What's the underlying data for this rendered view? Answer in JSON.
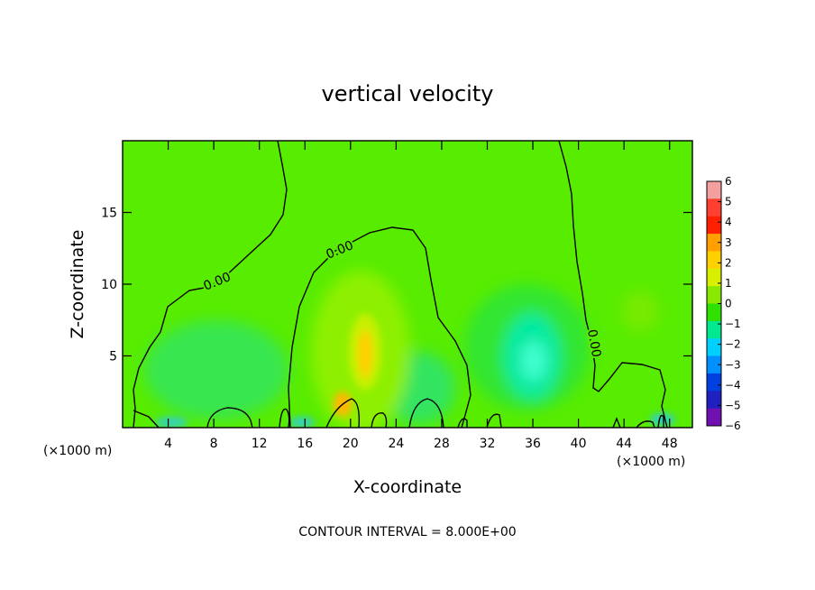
{
  "chart_data": {
    "type": "heatmap",
    "title": "vertical velocity",
    "xlabel": "X-coordinate",
    "ylabel": "Z-coordinate",
    "x_unit": "(×1000 m)",
    "x_ticks": [
      4,
      8,
      12,
      16,
      20,
      24,
      28,
      32,
      36,
      40,
      44,
      48
    ],
    "y_ticks": [
      5,
      10,
      15
    ],
    "xlim": [
      0,
      50
    ],
    "ylim": [
      0,
      20
    ],
    "colorbar": {
      "ticks": [
        6,
        5,
        4,
        3,
        2,
        1,
        0,
        -1,
        -2,
        -3,
        -4,
        -5,
        -6
      ],
      "colors": [
        "#f4a0a0",
        "#ff4030",
        "#ff2000",
        "#ffa000",
        "#ffd000",
        "#d8f000",
        "#88e800",
        "#30e000",
        "#00e890",
        "#00d0ff",
        "#0090ff",
        "#0040e0",
        "#2020c0",
        "#7010b0"
      ]
    },
    "field_features": [
      {
        "label": "updraft core",
        "x": 21,
        "z": 5,
        "value": 3
      },
      {
        "label": "updraft low-level",
        "x": 19,
        "z": 1.5,
        "value": 4
      },
      {
        "label": "downdraft",
        "x": 35.5,
        "z": 4.5,
        "value": -1.8
      },
      {
        "label": "weak downdraft",
        "x": 9,
        "z": 5,
        "value": -0.5
      },
      {
        "label": "weak downdraft",
        "x": 25,
        "z": 2,
        "value": -0.6
      }
    ],
    "contour_labels": [
      "0.00",
      "0.00",
      "0.00"
    ],
    "contour_interval_text": "CONTOUR INTERVAL = 8.000E+00"
  }
}
